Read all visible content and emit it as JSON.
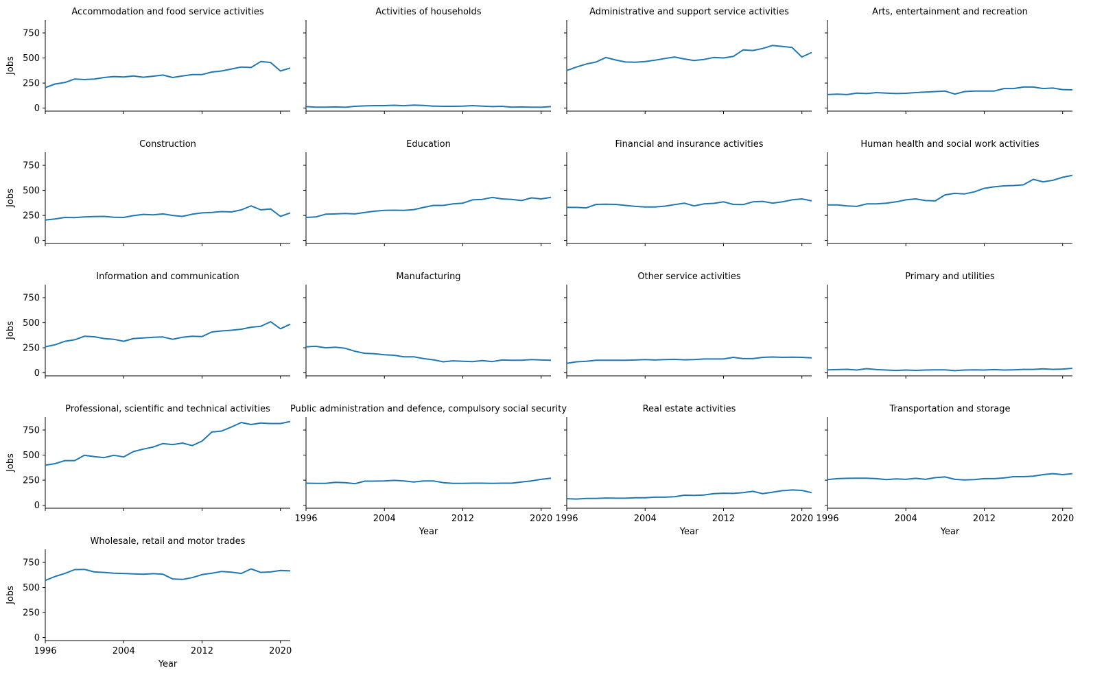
{
  "chart_data": {
    "type": "line",
    "layout": "facet-grid",
    "columns": 4,
    "xlabel": "Year",
    "ylabel": "Jobs",
    "xlim": [
      1996,
      2021
    ],
    "ylim": [
      -30,
      880
    ],
    "x_ticks": [
      1996,
      2004,
      2012,
      2020
    ],
    "y_ticks": [
      0,
      250,
      500,
      750
    ],
    "line_color": "#1f77b4",
    "x": [
      1996,
      1997,
      1998,
      1999,
      2000,
      2001,
      2002,
      2003,
      2004,
      2005,
      2006,
      2007,
      2008,
      2009,
      2010,
      2011,
      2012,
      2013,
      2014,
      2015,
      2016,
      2017,
      2018,
      2019,
      2020,
      2021
    ],
    "panels": [
      {
        "title": "Accommodation and food service activities",
        "values": [
          205,
          240,
          255,
          290,
          285,
          290,
          305,
          315,
          310,
          320,
          308,
          318,
          330,
          305,
          320,
          335,
          335,
          360,
          370,
          390,
          410,
          405,
          465,
          455,
          370,
          400
        ]
      },
      {
        "title": "Activities of households",
        "values": [
          15,
          10,
          10,
          12,
          8,
          18,
          22,
          25,
          25,
          28,
          24,
          30,
          26,
          20,
          18,
          18,
          20,
          25,
          20,
          15,
          18,
          10,
          12,
          10,
          8,
          15
        ]
      },
      {
        "title": "Administrative and support service activities",
        "values": [
          375,
          410,
          440,
          460,
          505,
          480,
          460,
          458,
          465,
          478,
          495,
          510,
          490,
          475,
          485,
          505,
          500,
          515,
          580,
          575,
          595,
          625,
          615,
          605,
          510,
          555
        ]
      },
      {
        "title": "Arts, entertainment and recreation",
        "values": [
          135,
          140,
          135,
          150,
          145,
          155,
          150,
          145,
          148,
          155,
          160,
          165,
          170,
          140,
          165,
          170,
          170,
          170,
          195,
          195,
          210,
          210,
          195,
          200,
          185,
          182
        ]
      },
      {
        "title": "Construction",
        "values": [
          205,
          215,
          230,
          228,
          235,
          238,
          240,
          232,
          230,
          248,
          260,
          256,
          265,
          250,
          240,
          262,
          275,
          280,
          288,
          285,
          305,
          345,
          305,
          315,
          240,
          275
        ]
      },
      {
        "title": "Education",
        "values": [
          230,
          235,
          262,
          265,
          270,
          265,
          280,
          292,
          300,
          302,
          300,
          308,
          330,
          350,
          350,
          365,
          372,
          405,
          410,
          430,
          415,
          410,
          398,
          425,
          415,
          430
        ]
      },
      {
        "title": "Financial and insurance activities",
        "values": [
          330,
          330,
          325,
          360,
          362,
          360,
          350,
          340,
          335,
          335,
          342,
          358,
          372,
          345,
          365,
          370,
          385,
          360,
          358,
          385,
          390,
          372,
          385,
          405,
          415,
          395
        ]
      },
      {
        "title": "Human health and social work activities",
        "values": [
          355,
          355,
          345,
          340,
          365,
          365,
          372,
          385,
          405,
          415,
          398,
          395,
          455,
          470,
          465,
          485,
          520,
          535,
          545,
          548,
          555,
          610,
          585,
          600,
          630,
          650
        ]
      },
      {
        "title": "Information and communication",
        "values": [
          260,
          280,
          315,
          330,
          365,
          360,
          342,
          335,
          315,
          342,
          348,
          355,
          358,
          335,
          355,
          365,
          362,
          408,
          418,
          425,
          435,
          455,
          465,
          510,
          440,
          485
        ]
      },
      {
        "title": "Manufacturing",
        "values": [
          260,
          265,
          250,
          255,
          245,
          215,
          195,
          190,
          180,
          175,
          160,
          160,
          142,
          130,
          110,
          120,
          115,
          112,
          122,
          112,
          128,
          125,
          125,
          132,
          128,
          125
        ]
      },
      {
        "title": "Other service activities",
        "values": [
          95,
          110,
          115,
          125,
          125,
          126,
          125,
          128,
          132,
          128,
          132,
          135,
          130,
          132,
          138,
          138,
          138,
          155,
          142,
          142,
          155,
          158,
          155,
          157,
          155,
          150
        ]
      },
      {
        "title": "Primary and utilities",
        "values": [
          30,
          32,
          35,
          28,
          42,
          32,
          28,
          24,
          28,
          25,
          28,
          30,
          30,
          22,
          28,
          30,
          28,
          32,
          28,
          30,
          34,
          34,
          40,
          35,
          38,
          45
        ]
      },
      {
        "title": "Professional, scientific and technical activities",
        "values": [
          400,
          415,
          445,
          445,
          498,
          485,
          475,
          498,
          482,
          535,
          560,
          580,
          615,
          605,
          620,
          595,
          640,
          730,
          740,
          780,
          825,
          805,
          820,
          815,
          815,
          835
        ]
      },
      {
        "title": "Public administration and defence, compulsory social security",
        "values": [
          220,
          218,
          218,
          228,
          225,
          215,
          240,
          240,
          242,
          248,
          242,
          232,
          242,
          242,
          225,
          218,
          218,
          220,
          220,
          218,
          220,
          220,
          232,
          242,
          258,
          270
        ]
      },
      {
        "title": "Real estate activities",
        "values": [
          65,
          62,
          68,
          68,
          72,
          70,
          70,
          75,
          75,
          80,
          80,
          85,
          100,
          98,
          102,
          115,
          120,
          118,
          125,
          138,
          115,
          130,
          145,
          152,
          148,
          125
        ]
      },
      {
        "title": "Transportation and storage",
        "values": [
          255,
          265,
          268,
          270,
          270,
          265,
          255,
          262,
          258,
          268,
          258,
          275,
          282,
          258,
          252,
          255,
          265,
          265,
          272,
          285,
          285,
          290,
          305,
          315,
          305,
          315
        ]
      },
      {
        "title": "Wholesale, retail and motor trades",
        "values": [
          570,
          610,
          640,
          678,
          680,
          655,
          650,
          642,
          640,
          635,
          632,
          638,
          632,
          585,
          580,
          598,
          628,
          642,
          660,
          652,
          640,
          685,
          650,
          655,
          670,
          665
        ]
      }
    ]
  }
}
